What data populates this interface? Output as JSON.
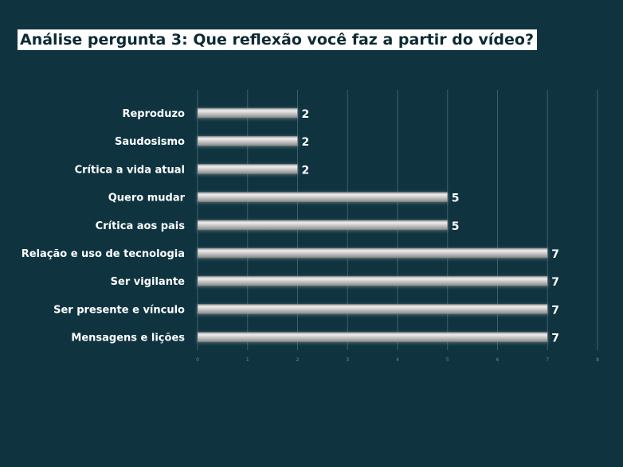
{
  "page": {
    "title": "Análise pergunta 3: Que reflexão você faz a partir do vídeo?"
  },
  "colors": {
    "background": "#0f3440",
    "bar_fill": "#c2c2c2",
    "bar_highlight": "#eeeeee",
    "bar_shadow": "#5d6a6d",
    "gridline": "#3f5f68",
    "text": "#ffffff"
  },
  "chart_data": {
    "type": "bar",
    "orientation": "horizontal",
    "title": "Análise pergunta 3: Que reflexão você faz a partir do vídeo?",
    "categories": [
      "Reproduzo",
      "Saudosismo",
      "Crítica a vida atual",
      "Quero mudar",
      "Crítica aos pais",
      "Relação e uso de tecnologia",
      "Ser vigilante",
      "Ser presente e vínculo",
      "Mensagens e lições"
    ],
    "values": [
      2,
      2,
      2,
      5,
      5,
      7,
      7,
      7,
      7
    ],
    "data_labels": [
      "2",
      "2",
      "2",
      "5",
      "5",
      "7",
      "7",
      "7",
      "7"
    ],
    "xlim": [
      0,
      8
    ],
    "xticks": [
      0,
      1,
      2,
      3,
      4,
      5,
      6,
      7,
      8
    ],
    "grid": true,
    "legend": "none"
  }
}
